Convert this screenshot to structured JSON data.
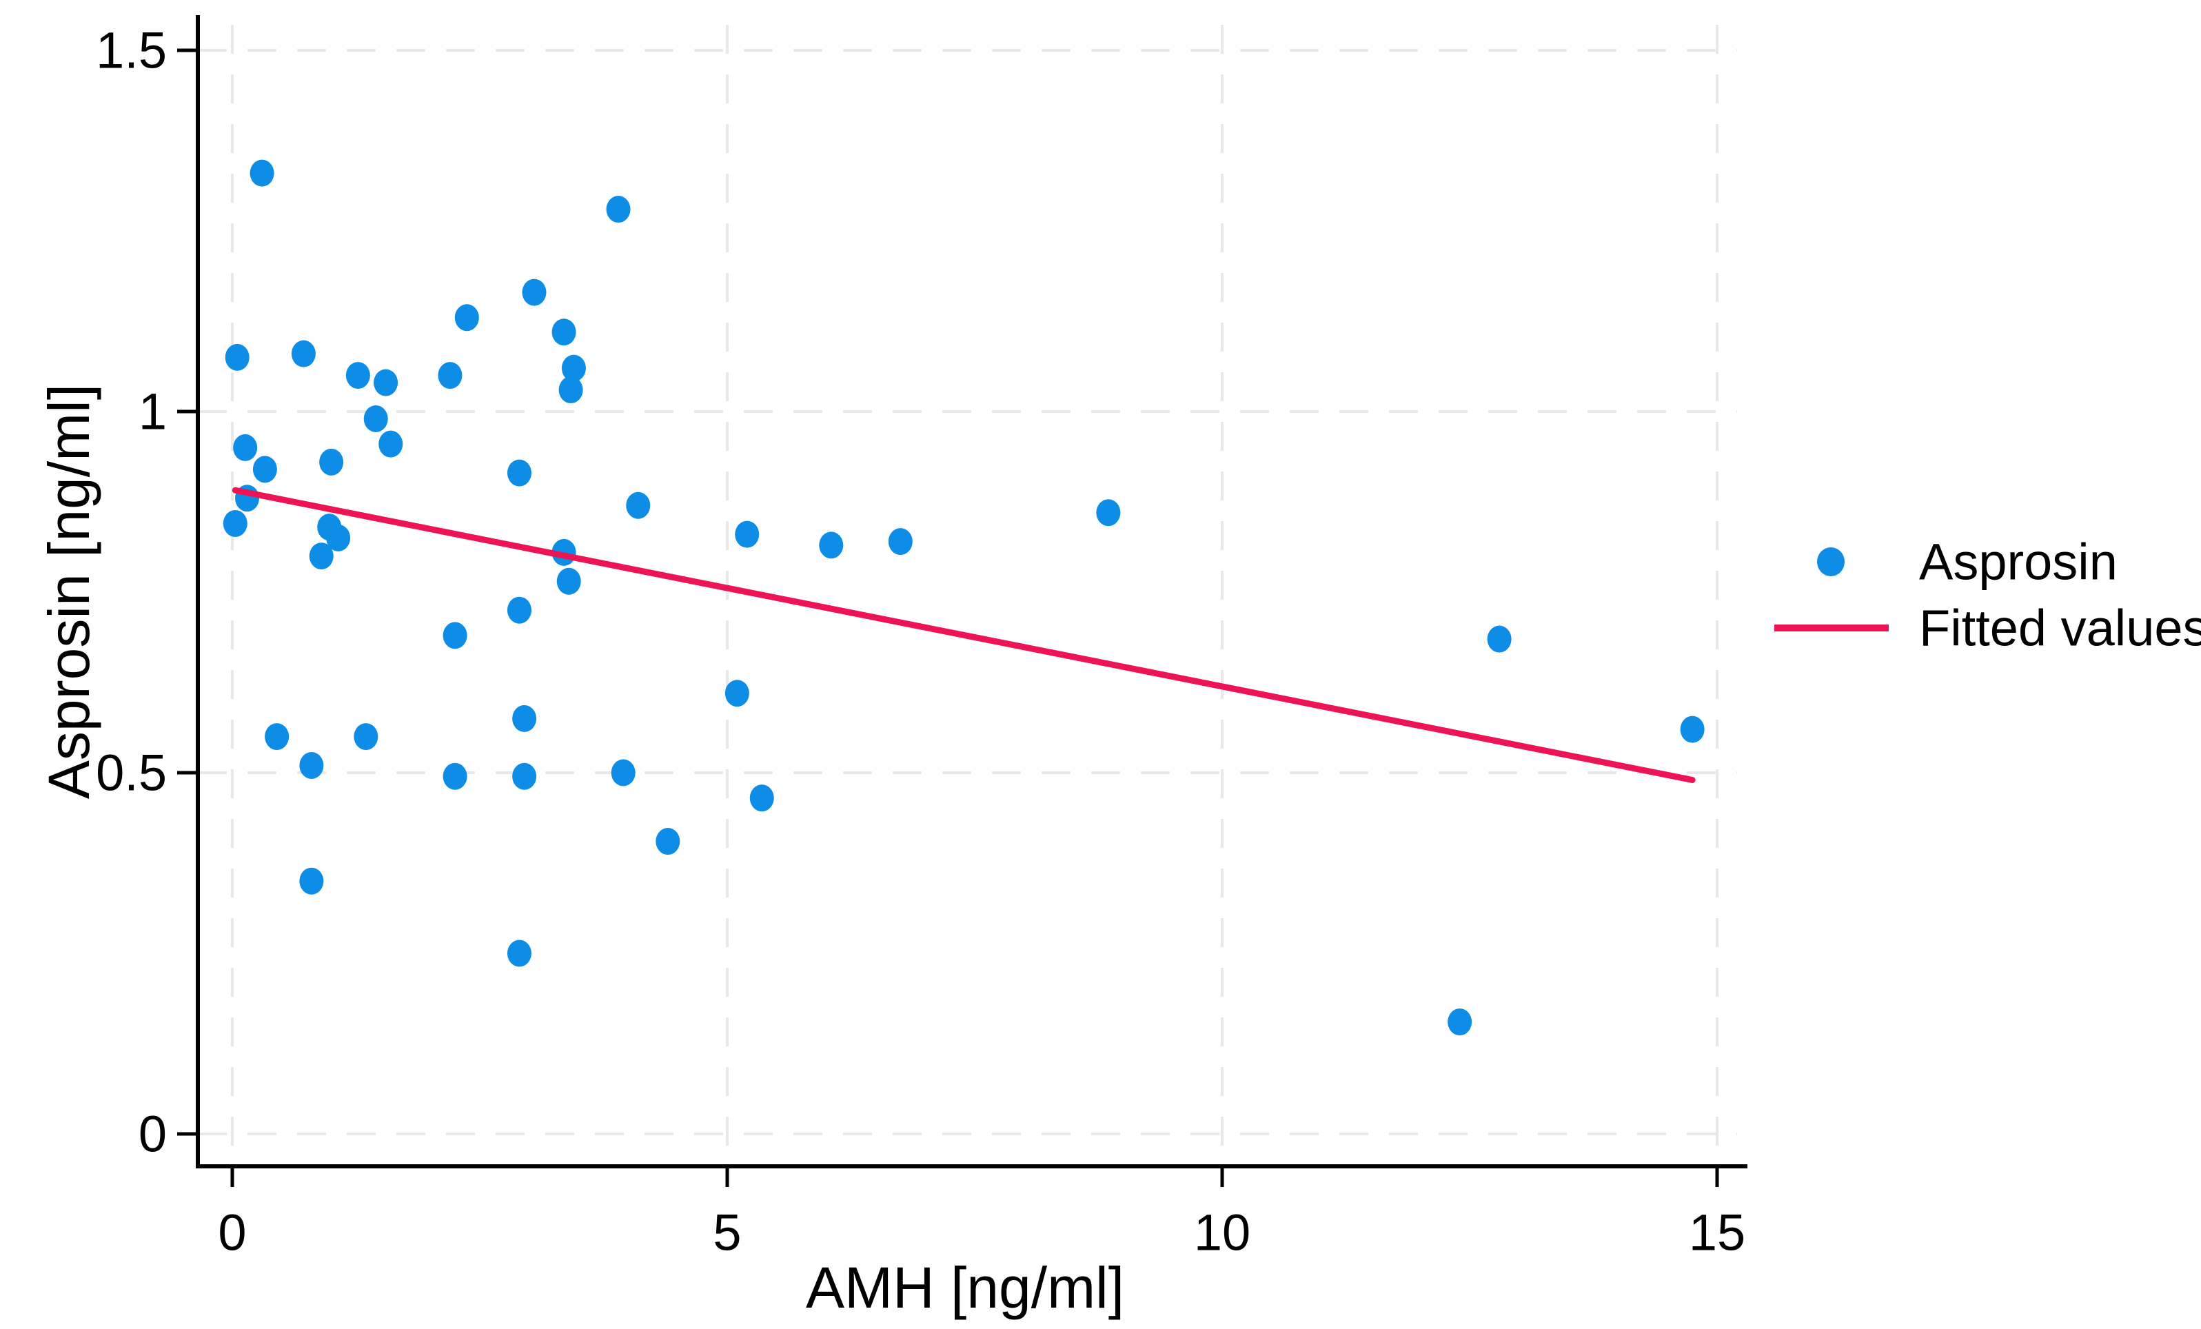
{
  "figure": {
    "background": "#ffffff"
  },
  "colors": {
    "scatter": "#0d8de6",
    "fitted_line": "#ed1455",
    "grid": "#e8e8e8",
    "axis": "#000000",
    "text": "#000000"
  },
  "legend": {
    "position": "right-outside",
    "items": [
      {
        "label": "Asprosin",
        "swatch": "dot-marker",
        "color": "#0d8de6"
      },
      {
        "label": "Fitted values",
        "swatch": "line-sample",
        "color": "#ed1455"
      }
    ]
  },
  "chart_data": {
    "type": "scatter",
    "title": "",
    "xlabel": "AMH [ng/ml]",
    "ylabel": "Asprosin [ng/ml]",
    "xlim": [
      -0.35,
      15.35
    ],
    "ylim": [
      -0.045,
      1.55
    ],
    "grid": true,
    "legend_position": "right",
    "xticks": {
      "values": [
        0,
        5,
        10,
        15
      ],
      "labels": [
        "0",
        "5",
        "10",
        "15"
      ]
    },
    "yticks": {
      "values": [
        0,
        0.5,
        1,
        1.5
      ],
      "labels": [
        "0",
        "0.5",
        "1",
        "1.5"
      ]
    },
    "series": [
      {
        "name": "Asprosin",
        "type": "scatter",
        "points": [
          [
            0.05,
            1.075
          ],
          [
            0.3,
            1.33
          ],
          [
            0.72,
            1.08
          ],
          [
            1.27,
            1.05
          ],
          [
            1.55,
            1.04
          ],
          [
            2.2,
            1.05
          ],
          [
            2.37,
            1.13
          ],
          [
            3.05,
            1.165
          ],
          [
            3.35,
            1.11
          ],
          [
            3.45,
            1.06
          ],
          [
            3.42,
            1.03
          ],
          [
            3.9,
            1.28
          ],
          [
            0.13,
            0.95
          ],
          [
            0.33,
            0.92
          ],
          [
            1.45,
            0.99
          ],
          [
            1.6,
            0.955
          ],
          [
            1.0,
            0.93
          ],
          [
            0.03,
            0.845
          ],
          [
            0.15,
            0.88
          ],
          [
            0.98,
            0.84
          ],
          [
            1.07,
            0.825
          ],
          [
            0.9,
            0.8
          ],
          [
            2.9,
            0.915
          ],
          [
            3.35,
            0.805
          ],
          [
            3.4,
            0.765
          ],
          [
            2.9,
            0.725
          ],
          [
            2.25,
            0.69
          ],
          [
            4.1,
            0.87
          ],
          [
            5.2,
            0.83
          ],
          [
            6.05,
            0.815
          ],
          [
            6.75,
            0.82
          ],
          [
            8.85,
            0.86
          ],
          [
            5.1,
            0.61
          ],
          [
            2.95,
            0.575
          ],
          [
            0.45,
            0.55
          ],
          [
            1.35,
            0.55
          ],
          [
            0.8,
            0.51
          ],
          [
            2.25,
            0.495
          ],
          [
            2.95,
            0.495
          ],
          [
            3.95,
            0.5
          ],
          [
            5.35,
            0.465
          ],
          [
            4.4,
            0.405
          ],
          [
            0.8,
            0.35
          ],
          [
            2.9,
            0.25
          ],
          [
            12.8,
            0.685
          ],
          [
            12.4,
            0.155
          ],
          [
            14.75,
            0.56
          ]
        ]
      },
      {
        "name": "Fitted values",
        "type": "line",
        "points": [
          [
            0.03,
            0.891
          ],
          [
            14.75,
            0.49
          ]
        ]
      }
    ]
  }
}
